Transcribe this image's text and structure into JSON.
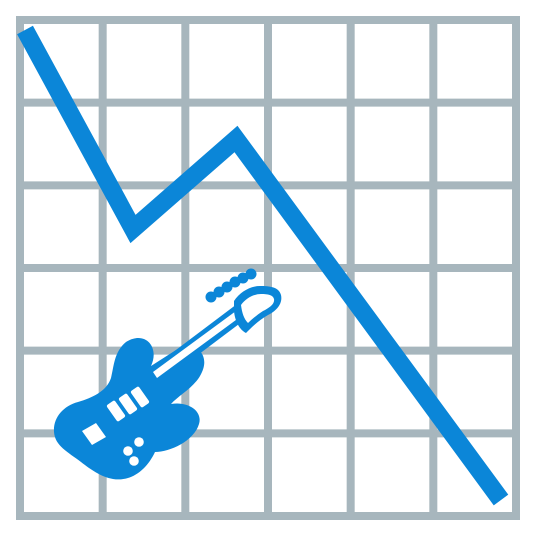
{
  "colors": {
    "background": "#ffffff",
    "grid": "#a7b6bd",
    "trend_line": "#0b86d8",
    "guitar_body": "#0b86d8",
    "guitar_detail": "#ffffff"
  },
  "icons": {
    "trend": "declining-trend-line-icon",
    "guitar": "electric-guitar-icon"
  },
  "grid": {
    "columns": 6,
    "rows": 6
  },
  "trend": {
    "direction": "down"
  }
}
